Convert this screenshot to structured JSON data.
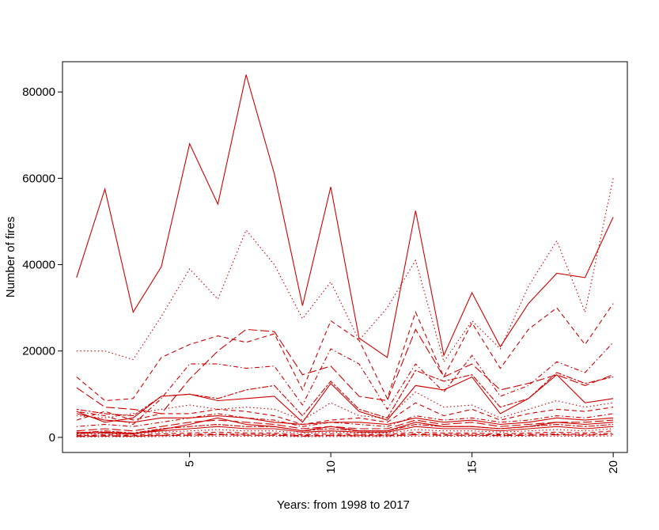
{
  "chart_data": {
    "type": "line",
    "title": "",
    "xlabel": "Years: from 1998 to 2017",
    "ylabel": "Number of fires",
    "xlim": [
      0.5,
      20.5
    ],
    "ylim": [
      -3500,
      87000
    ],
    "x_ticks": [
      5,
      10,
      15,
      20
    ],
    "y_ticks": [
      0,
      20000,
      40000,
      60000,
      80000
    ],
    "grid": false,
    "legend": "none",
    "line_color": "#cc0000",
    "x": [
      1,
      2,
      3,
      4,
      5,
      6,
      7,
      8,
      9,
      10,
      11,
      12,
      13,
      14,
      15,
      16,
      17,
      18,
      19,
      20
    ],
    "series": [
      {
        "style": "solid",
        "values": [
          37000,
          57500,
          29000,
          39500,
          68000,
          54000,
          84000,
          61000,
          30500,
          58000,
          23000,
          18500,
          52500,
          19000,
          33500,
          21000,
          31000,
          38000,
          37000,
          51000
        ]
      },
      {
        "style": "dotted",
        "values": [
          20000,
          20000,
          18000,
          28000,
          39000,
          32000,
          48000,
          40000,
          27500,
          36000,
          22500,
          30000,
          41000,
          17500,
          27000,
          20500,
          35000,
          45500,
          29000,
          60000
        ]
      },
      {
        "style": "dashed",
        "values": [
          14000,
          8500,
          9000,
          18500,
          21500,
          23500,
          22000,
          24000,
          11000,
          27000,
          22500,
          9000,
          29000,
          14000,
          26500,
          16000,
          25000,
          30000,
          21500,
          31000
        ]
      },
      {
        "style": "dotdash",
        "values": [
          6000,
          5000,
          3000,
          9000,
          17000,
          17000,
          16000,
          16500,
          7500,
          20500,
          17000,
          6500,
          17000,
          10500,
          19000,
          9500,
          12000,
          17500,
          15000,
          22000
        ]
      },
      {
        "style": "longdash",
        "values": [
          11500,
          7000,
          6500,
          5500,
          13500,
          20000,
          25000,
          24500,
          14500,
          16500,
          9500,
          8500,
          25000,
          14000,
          17000,
          11000,
          12500,
          14500,
          12000,
          14500
        ]
      },
      {
        "style": "twodash",
        "values": [
          6500,
          5500,
          5000,
          9500,
          10000,
          9000,
          11000,
          12000,
          5000,
          13000,
          6500,
          4500,
          15500,
          13000,
          14500,
          7000,
          9000,
          15000,
          12500,
          14000
        ]
      },
      {
        "style": "solid",
        "values": [
          6000,
          3500,
          4500,
          9500,
          10000,
          8500,
          9000,
          9500,
          3500,
          12500,
          6000,
          4000,
          12000,
          11000,
          14000,
          5500,
          9000,
          14500,
          8000,
          9000
        ]
      },
      {
        "style": "dotted",
        "values": [
          5000,
          4500,
          5500,
          6500,
          7500,
          6500,
          7000,
          6500,
          4000,
          8000,
          5000,
          4500,
          10500,
          7000,
          7500,
          4500,
          6500,
          8500,
          7000,
          8000
        ]
      },
      {
        "style": "dashed",
        "values": [
          4000,
          6000,
          4000,
          5500,
          5500,
          6500,
          6000,
          5000,
          3000,
          4000,
          4500,
          3500,
          8000,
          5000,
          6500,
          4000,
          5500,
          6500,
          6000,
          7000
        ]
      },
      {
        "style": "dotdash",
        "values": [
          2500,
          3000,
          2500,
          3500,
          4500,
          5500,
          4500,
          4000,
          2500,
          3500,
          3000,
          2500,
          5000,
          4000,
          4500,
          3500,
          4000,
          5000,
          4500,
          5500
        ]
      },
      {
        "style": "longdash",
        "values": [
          1500,
          2000,
          1500,
          2500,
          3500,
          4000,
          3500,
          3000,
          2000,
          2500,
          2000,
          2000,
          4000,
          3000,
          3500,
          2500,
          3000,
          3500,
          3500,
          4000
        ]
      },
      {
        "style": "twodash",
        "values": [
          1000,
          1500,
          1000,
          2000,
          2500,
          3000,
          2500,
          2500,
          1500,
          2000,
          1500,
          1500,
          3000,
          2500,
          2500,
          2000,
          2500,
          3000,
          2500,
          3000
        ]
      },
      {
        "style": "solid",
        "values": [
          800,
          1200,
          900,
          1500,
          2000,
          2500,
          2000,
          2000,
          1200,
          1500,
          1200,
          1200,
          2500,
          2000,
          2000,
          1500,
          2000,
          2500,
          2000,
          2500
        ]
      },
      {
        "style": "dotted",
        "values": [
          600,
          900,
          700,
          1200,
          1500,
          1800,
          1500,
          1500,
          900,
          1200,
          1000,
          1000,
          1800,
          1500,
          1500,
          1200,
          1500,
          1800,
          1500,
          2000
        ]
      },
      {
        "style": "dashed",
        "values": [
          400,
          600,
          500,
          800,
          1000,
          1200,
          1000,
          1000,
          600,
          800,
          700,
          700,
          1200,
          1000,
          1000,
          800,
          1000,
          1200,
          1000,
          1500
        ]
      },
      {
        "style": "dotdash",
        "values": [
          300,
          400,
          350,
          500,
          700,
          800,
          700,
          700,
          400,
          500,
          500,
          500,
          800,
          700,
          700,
          600,
          700,
          800,
          700,
          1000
        ]
      },
      {
        "style": "longdash",
        "values": [
          200,
          300,
          250,
          400,
          500,
          600,
          500,
          500,
          300,
          400,
          350,
          350,
          600,
          500,
          500,
          400,
          500,
          600,
          500,
          700
        ]
      },
      {
        "style": "solid",
        "values": [
          1200,
          1000,
          800,
          1800,
          3000,
          4500,
          3000,
          2500,
          1500,
          2500,
          1500,
          1500,
          3500,
          2500,
          2500,
          2000,
          2500,
          3500,
          3000,
          3500
        ]
      },
      {
        "style": "solid",
        "values": [
          5500,
          4000,
          3500,
          4500,
          4500,
          5000,
          4500,
          3500,
          3000,
          3500,
          3500,
          3000,
          4500,
          3500,
          4000,
          3000,
          3500,
          4500,
          4000,
          4500
        ]
      },
      {
        "style": "dotted",
        "values": [
          100,
          150,
          120,
          200,
          250,
          300,
          250,
          250,
          150,
          200,
          180,
          180,
          300,
          250,
          250,
          200,
          250,
          300,
          250,
          350
        ]
      }
    ]
  }
}
